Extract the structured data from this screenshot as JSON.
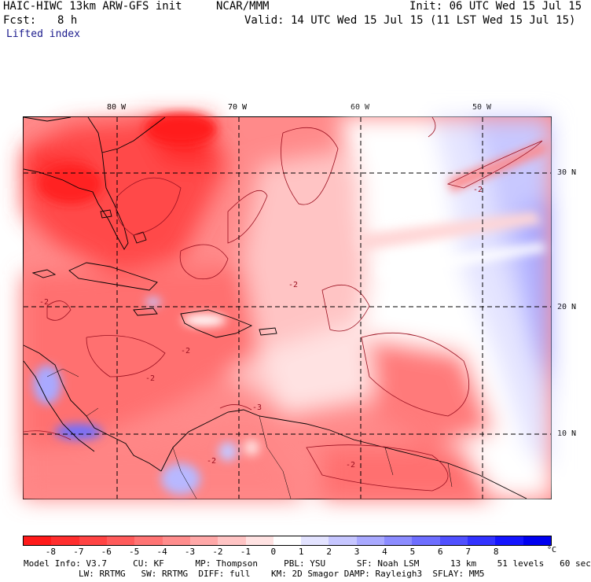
{
  "header": {
    "model": "HAIC-HIWC 13km ARW-GFS init",
    "org": "NCAR/MMM",
    "init": "Init: 06 UTC Wed 15 Jul 15",
    "fcst_label": "Fcst:",
    "fcst_value": "8 h",
    "valid": "Valid: 14 UTC Wed 15 Jul 15 (11 LST Wed 15 Jul 15)",
    "field": "Lifted index"
  },
  "map": {
    "longitude_labels": [
      "80 W",
      "70 W",
      "60 W",
      "50 W"
    ],
    "latitude_labels": [
      "30 N",
      "20 N",
      "10 N"
    ],
    "contour_labels": [
      "-2",
      "-2",
      "-2",
      "-2",
      "-2",
      "-2",
      "-2",
      "-3"
    ],
    "grid_style": "dashed",
    "coastlines": true
  },
  "colorbar": {
    "ticks": [
      "-8",
      "-7",
      "-6",
      "-5",
      "-4",
      "-3",
      "-2",
      "-1",
      "0",
      "1",
      "2",
      "3",
      "4",
      "5",
      "6",
      "7",
      "8"
    ],
    "unit": "°C",
    "colors": [
      "#ff1a1a",
      "#ff2e2e",
      "#ff4444",
      "#ff5b5b",
      "#ff7474",
      "#ff8d8d",
      "#ffa8a8",
      "#ffc4c4",
      "#ffe2e2",
      "#ffffff",
      "#e3e3ff",
      "#c6c6ff",
      "#a9a9ff",
      "#8c8cff",
      "#6e6eff",
      "#5050ff",
      "#3232ff",
      "#1414ff",
      "#0000f0"
    ]
  },
  "footer": {
    "line1": "Model Info: V3.7     CU: KF      MP: Thompson     PBL: YSU      SF: Noah LSM      13 km    51 levels   60 sec",
    "line2": "LW: RRTMG   SW: RRTMG  DIFF: full    KM: 2D Smagor DAMP: Rayleigh3  SFLAY: MM5"
  }
}
